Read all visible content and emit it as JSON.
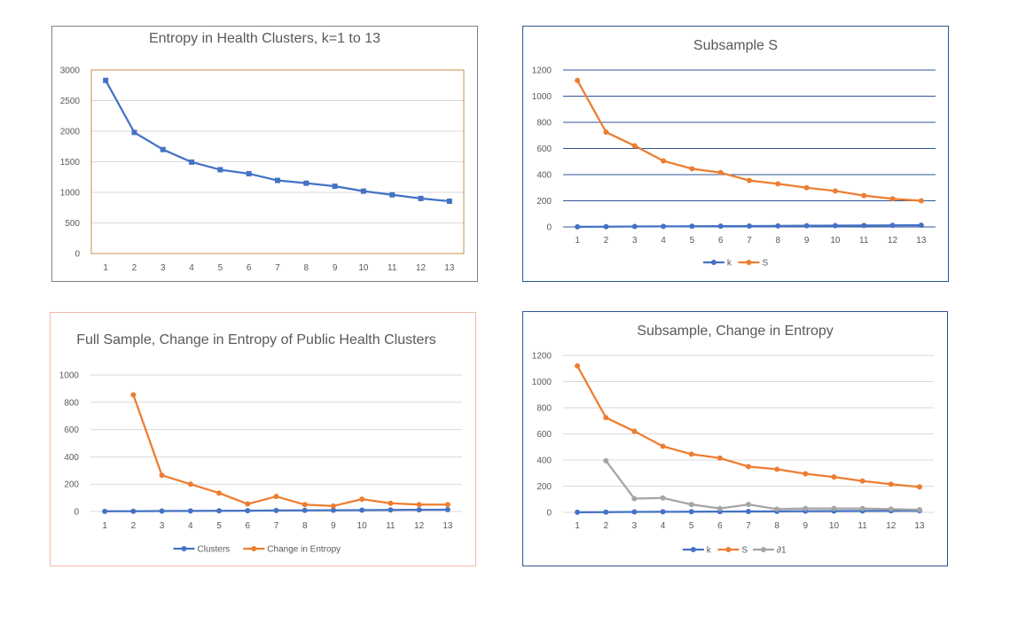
{
  "colors": {
    "blue": "#4472c4",
    "orange": "#ed7d31",
    "gray": "#a5a5a5",
    "gridline": "#d9d9d9",
    "gridline_blue": "#2f5597",
    "plot_border_gold": "#c5904a",
    "text": "#595959"
  },
  "chart_data": [
    {
      "type": "line",
      "title": "Entropy in Health Clusters, k=1 to 13",
      "categories": [
        "1",
        "2",
        "3",
        "4",
        "5",
        "6",
        "7",
        "8",
        "9",
        "10",
        "11",
        "12",
        "13"
      ],
      "ylim": [
        0,
        3000
      ],
      "yticks": [
        "0",
        "500",
        "1000",
        "1500",
        "2000",
        "2500",
        "3000"
      ],
      "grid": true,
      "legend": "none",
      "marker": "square",
      "series": [
        {
          "name": "",
          "color": "#4472c4",
          "values": [
            2830,
            1980,
            1700,
            1495,
            1370,
            1305,
            1195,
            1150,
            1100,
            1020,
            960,
            900,
            855
          ]
        }
      ]
    },
    {
      "type": "line",
      "title": "Subsample S",
      "categories": [
        "1",
        "2",
        "3",
        "4",
        "5",
        "6",
        "7",
        "8",
        "9",
        "10",
        "11",
        "12",
        "13"
      ],
      "ylim": [
        0,
        1200
      ],
      "yticks": [
        "0",
        "200",
        "400",
        "600",
        "800",
        "1000",
        "1200"
      ],
      "grid": true,
      "legend": "bottom",
      "marker": "circle",
      "series": [
        {
          "name": "k",
          "color": "#4472c4",
          "values": [
            1,
            2,
            3,
            4,
            5,
            6,
            7,
            8,
            9,
            10,
            11,
            12,
            13
          ]
        },
        {
          "name": "S",
          "color": "#ed7d31",
          "values": [
            1120,
            725,
            620,
            505,
            445,
            415,
            355,
            330,
            300,
            275,
            240,
            215,
            200
          ]
        }
      ]
    },
    {
      "type": "line",
      "title": "Full Sample, Change in Entropy of Public Health Clusters",
      "categories": [
        "1",
        "2",
        "3",
        "4",
        "5",
        "6",
        "7",
        "8",
        "9",
        "10",
        "11",
        "12",
        "13"
      ],
      "ylim": [
        0,
        1000
      ],
      "yticks": [
        "0",
        "200",
        "400",
        "600",
        "800",
        "1000"
      ],
      "grid": true,
      "legend": "bottom",
      "marker": "circle",
      "series": [
        {
          "name": "Clusters",
          "color": "#4472c4",
          "values": [
            1,
            2,
            3,
            4,
            5,
            6,
            7,
            8,
            9,
            10,
            11,
            12,
            13
          ]
        },
        {
          "name": "Change in Entropy",
          "color": "#ed7d31",
          "values": [
            null,
            855,
            265,
            200,
            135,
            55,
            110,
            50,
            40,
            90,
            60,
            50,
            50
          ]
        }
      ]
    },
    {
      "type": "line",
      "title": "Subsample, Change in Entropy",
      "categories": [
        "1",
        "2",
        "3",
        "4",
        "5",
        "6",
        "7",
        "8",
        "9",
        "10",
        "11",
        "12",
        "13"
      ],
      "ylim": [
        0,
        1200
      ],
      "yticks": [
        "0",
        "200",
        "400",
        "600",
        "800",
        "1000",
        "1200"
      ],
      "grid": true,
      "legend": "bottom",
      "marker": "circle",
      "series": [
        {
          "name": "k",
          "color": "#4472c4",
          "values": [
            1,
            2,
            3,
            4,
            5,
            6,
            7,
            8,
            9,
            10,
            11,
            12,
            13
          ]
        },
        {
          "name": "S",
          "color": "#ed7d31",
          "values": [
            1120,
            725,
            620,
            505,
            445,
            415,
            350,
            330,
            295,
            270,
            240,
            215,
            195
          ]
        },
        {
          "name": "∂1",
          "color": "#a5a5a5",
          "values": [
            null,
            395,
            105,
            110,
            60,
            30,
            60,
            25,
            30,
            30,
            30,
            25,
            20
          ]
        }
      ]
    }
  ]
}
